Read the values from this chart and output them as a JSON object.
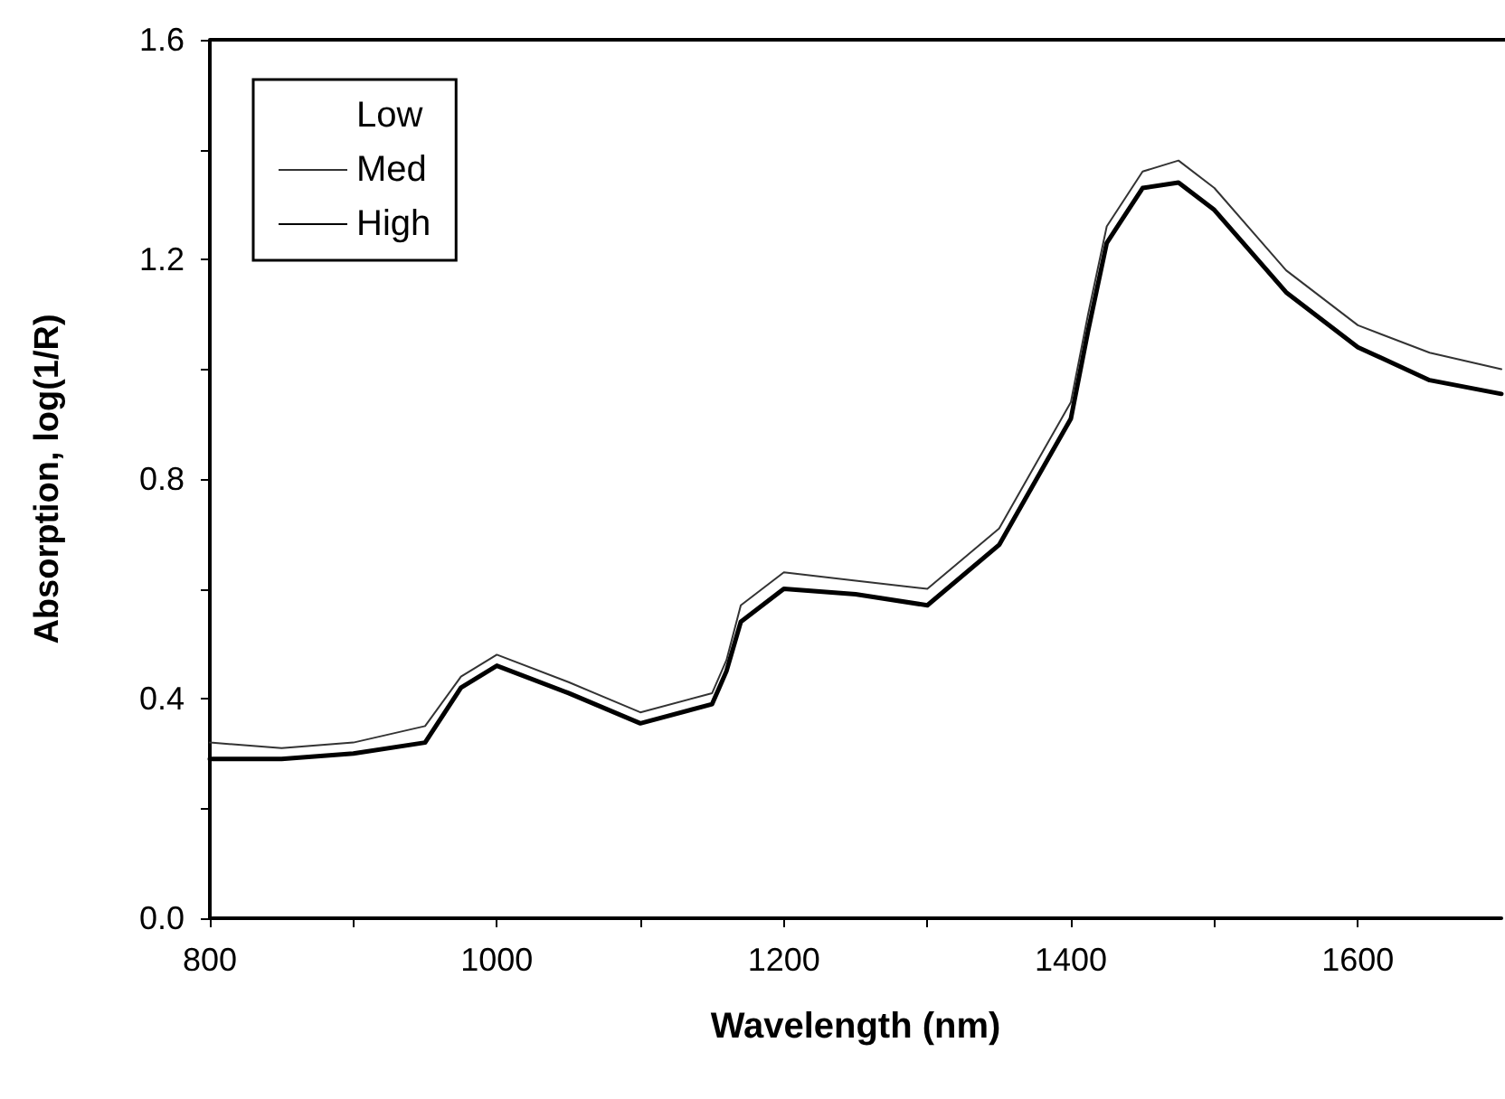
{
  "chart_data": {
    "type": "line",
    "xlabel": "Wavelength (nm)",
    "ylabel": "Absorption, log(1/R)",
    "x": [
      800,
      850,
      900,
      950,
      975,
      1000,
      1050,
      1100,
      1150,
      1160,
      1170,
      1200,
      1250,
      1300,
      1350,
      1400,
      1412,
      1425,
      1450,
      1475,
      1500,
      1550,
      1600,
      1650,
      1700
    ],
    "series": [
      {
        "name": "Low",
        "values": [
          null,
          null,
          null,
          null,
          null,
          null,
          null,
          null,
          null,
          null,
          null,
          null,
          null,
          null,
          null,
          null,
          null,
          null,
          null,
          null,
          null,
          null,
          null,
          null,
          null
        ]
      },
      {
        "name": "Med",
        "color": "#333333",
        "values": [
          0.32,
          0.31,
          0.32,
          0.35,
          0.44,
          0.48,
          0.43,
          0.375,
          0.41,
          0.47,
          0.57,
          0.63,
          0.615,
          0.6,
          0.71,
          0.94,
          1.1,
          1.26,
          1.36,
          1.38,
          1.33,
          1.18,
          1.08,
          1.03,
          1.0
        ]
      },
      {
        "name": "High",
        "color": "#000000",
        "values": [
          0.29,
          0.29,
          0.3,
          0.32,
          0.42,
          0.46,
          0.41,
          0.355,
          0.39,
          0.45,
          0.54,
          0.6,
          0.59,
          0.57,
          0.68,
          0.91,
          1.07,
          1.23,
          1.33,
          1.34,
          1.29,
          1.14,
          1.04,
          0.98,
          0.955
        ]
      }
    ],
    "xlim": [
      800,
      1700
    ],
    "xticks": [
      800,
      {
        "value": 900,
        "label": null
      },
      1000,
      {
        "value": 1100,
        "label": null
      },
      1200,
      {
        "value": 1300,
        "label": null
      },
      1400,
      {
        "value": 1500,
        "label": null
      },
      1600
    ],
    "ylim": [
      0,
      1.6
    ],
    "yticks": [
      {
        "value": 0,
        "label": "0.0"
      },
      {
        "value": 0.2,
        "label": null
      },
      0.4,
      {
        "value": 0.6,
        "label": null
      },
      0.8,
      {
        "value": 1.0,
        "label": null
      },
      1.2,
      {
        "value": 1.4,
        "label": null
      },
      1.6
    ],
    "grid": false,
    "legend": "top left",
    "marker": "none",
    "line_style": "solid"
  }
}
